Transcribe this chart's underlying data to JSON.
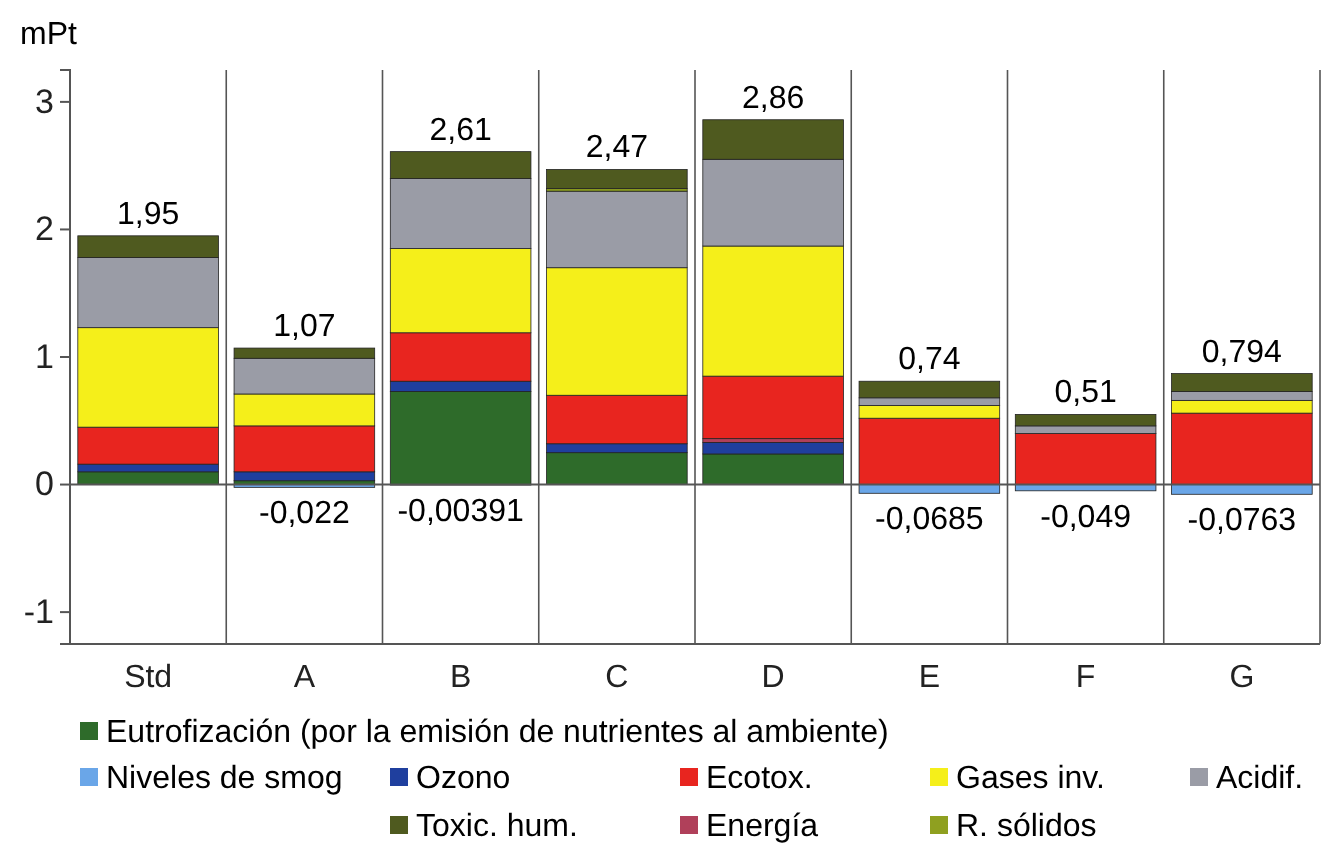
{
  "chart_data": {
    "type": "bar",
    "stacked": true,
    "ylabel": "mPt",
    "categories": [
      "Std",
      "A",
      "B",
      "C",
      "D",
      "E",
      "F",
      "G"
    ],
    "ylim": [
      -1.25,
      3.25
    ],
    "yticks": [
      -1,
      0,
      1,
      2,
      3
    ],
    "legend": "bottom",
    "series": [
      {
        "name": "Eutrofización (por la emisión de nutrientes al ambiente)",
        "color": "#2e6b2a",
        "values": [
          0.1,
          0.03,
          0.73,
          0.25,
          0.24,
          0,
          0,
          0
        ]
      },
      {
        "name": "Niveles de smog",
        "color": "#6aa6e8",
        "values": [
          0,
          -0.022,
          -0.00391,
          0,
          0,
          -0.0685,
          -0.049,
          -0.0763
        ],
        "value_labels": [
          null,
          "-0,022",
          "-0,00391",
          null,
          null,
          "-0,0685",
          "-0,049",
          "-0,0763"
        ]
      },
      {
        "name": "Ozono",
        "color": "#1f3f9e",
        "values": [
          0.06,
          0.07,
          0.08,
          0.07,
          0.09,
          0,
          0,
          0
        ]
      },
      {
        "name": "Energía",
        "color": "#b0405a",
        "values": [
          0,
          0,
          0,
          0,
          0.03,
          0,
          0,
          0
        ]
      },
      {
        "name": "Ecotox.",
        "color": "#e8251f",
        "values": [
          0.29,
          0.36,
          0.38,
          0.38,
          0.49,
          0.52,
          0.4,
          0.56
        ]
      },
      {
        "name": "Gases inv.",
        "color": "#f5ef1a",
        "values": [
          0.78,
          0.25,
          0.66,
          1.0,
          1.02,
          0.1,
          0,
          0.1
        ]
      },
      {
        "name": "Acidif.",
        "color": "#9a9ca6",
        "values": [
          0.55,
          0.28,
          0.55,
          0.6,
          0.68,
          0.06,
          0.06,
          0.07
        ]
      },
      {
        "name": "R. sólidos",
        "color": "#8fa020",
        "values": [
          0,
          0,
          0,
          0.02,
          0,
          0,
          0,
          0
        ]
      },
      {
        "name": "Toxic. hum.",
        "color": "#4f5a1f",
        "values": [
          0.17,
          0.08,
          0.21,
          0.15,
          0.31,
          0.13,
          0.09,
          0.14
        ]
      }
    ],
    "totals": [
      "1,95",
      "1,07",
      "2,61",
      "2,47",
      "2,86",
      "0,74",
      "0,51",
      "0,794"
    ]
  }
}
